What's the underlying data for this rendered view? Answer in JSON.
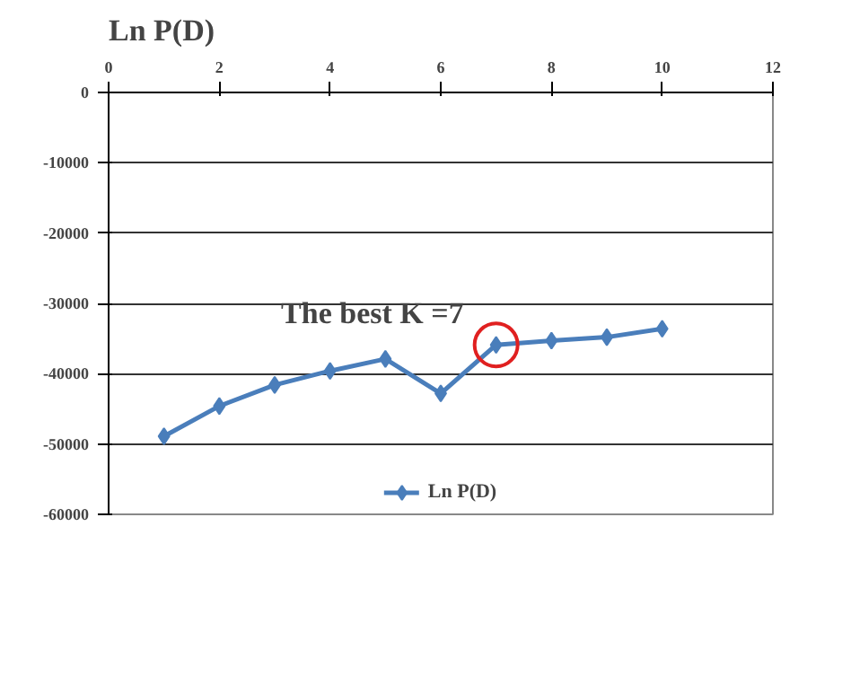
{
  "chart_data": {
    "type": "line",
    "title": "Ln P(D)",
    "x": [
      1,
      2,
      3,
      4,
      5,
      6,
      7,
      8,
      9,
      10
    ],
    "series": [
      {
        "name": "Ln P(D)",
        "color": "#4a7ebb",
        "values": [
          -48900,
          -44600,
          -41600,
          -39600,
          -37900,
          -42800,
          -35900,
          -35300,
          -34800,
          -33600
        ]
      }
    ],
    "xlim": [
      0,
      12
    ],
    "xticks": [
      0,
      2,
      4,
      6,
      8,
      10,
      12
    ],
    "ylim": [
      -60000,
      0
    ],
    "yticks": [
      -60000,
      -50000,
      -40000,
      -30000,
      -20000,
      -10000,
      0
    ],
    "annotations": [
      {
        "text": "The best K =7",
        "x": 7,
        "y": -35900
      }
    ],
    "grid": "y",
    "legend": "bottom",
    "marker": "diamond",
    "line_style": "solid"
  }
}
